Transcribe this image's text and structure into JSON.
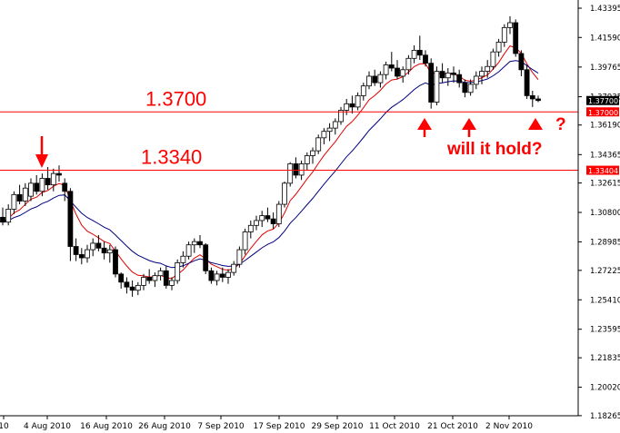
{
  "chart_data": {
    "type": "candlestick",
    "y_ticks": [
      "1.43395",
      "1.41590",
      "1.39765",
      "1.37935",
      "1.36190",
      "1.34365",
      "1.32615",
      "1.30800",
      "1.28985",
      "1.27225",
      "1.25410",
      "1.23595",
      "1.21835",
      "1.20020",
      "1.18265"
    ],
    "x_ticks": [
      "10",
      "4 Aug 2010",
      "16 Aug 2010",
      "26 Aug 2010",
      "7 Sep 2010",
      "17 Sep 2010",
      "29 Sep 2010",
      "11 Oct 2010",
      "21 Oct 2010",
      "2 Nov 2010"
    ],
    "ylim": [
      1.1826,
      1.439
    ],
    "current_price": "1.37700",
    "levels": [
      {
        "value": 1.37,
        "label": "1.3700",
        "tag": "1.37000"
      },
      {
        "value": 1.334,
        "label": "1.3340",
        "tag": "1.33404"
      }
    ],
    "annotations": {
      "question": "will it hold?",
      "mark": "?"
    },
    "candles": [
      [
        1.305,
        1.311,
        1.3,
        1.302
      ],
      [
        1.302,
        1.313,
        1.3,
        1.31
      ],
      [
        1.31,
        1.321,
        1.307,
        1.319
      ],
      [
        1.319,
        1.325,
        1.313,
        1.315
      ],
      [
        1.315,
        1.326,
        1.312,
        1.323
      ],
      [
        1.318,
        1.329,
        1.315,
        1.326
      ],
      [
        1.326,
        1.331,
        1.319,
        1.321
      ],
      [
        1.321,
        1.332,
        1.318,
        1.329
      ],
      [
        1.329,
        1.336,
        1.322,
        1.325
      ],
      [
        1.325,
        1.335,
        1.321,
        1.332
      ],
      [
        1.332,
        1.337,
        1.327,
        1.331
      ],
      [
        1.326,
        1.329,
        1.315,
        1.321
      ],
      [
        1.321,
        1.323,
        1.278,
        1.287
      ],
      [
        1.287,
        1.292,
        1.278,
        1.282
      ],
      [
        1.282,
        1.286,
        1.276,
        1.28
      ],
      [
        1.28,
        1.288,
        1.277,
        1.285
      ],
      [
        1.285,
        1.292,
        1.281,
        1.289
      ],
      [
        1.289,
        1.294,
        1.284,
        1.286
      ],
      [
        1.286,
        1.29,
        1.279,
        1.283
      ],
      [
        1.283,
        1.288,
        1.277,
        1.285
      ],
      [
        1.285,
        1.287,
        1.268,
        1.27
      ],
      [
        1.27,
        1.271,
        1.261,
        1.265
      ],
      [
        1.265,
        1.268,
        1.258,
        1.262
      ],
      [
        1.262,
        1.266,
        1.256,
        1.26
      ],
      [
        1.26,
        1.265,
        1.257,
        1.263
      ],
      [
        1.263,
        1.27,
        1.26,
        1.268
      ],
      [
        1.268,
        1.273,
        1.264,
        1.266
      ],
      [
        1.266,
        1.271,
        1.262,
        1.269
      ],
      [
        1.269,
        1.274,
        1.266,
        1.272
      ],
      [
        1.272,
        1.275,
        1.261,
        1.263
      ],
      [
        1.263,
        1.268,
        1.26,
        1.266
      ],
      [
        1.266,
        1.279,
        1.264,
        1.277
      ],
      [
        1.277,
        1.284,
        1.274,
        1.281
      ],
      [
        1.281,
        1.29,
        1.279,
        1.288
      ],
      [
        1.288,
        1.292,
        1.283,
        1.29
      ],
      [
        1.29,
        1.294,
        1.286,
        1.288
      ],
      [
        1.288,
        1.289,
        1.27,
        1.272
      ],
      [
        1.272,
        1.274,
        1.264,
        1.266
      ],
      [
        1.266,
        1.272,
        1.263,
        1.27
      ],
      [
        1.27,
        1.274,
        1.265,
        1.268
      ],
      [
        1.268,
        1.273,
        1.264,
        1.271
      ],
      [
        1.271,
        1.278,
        1.269,
        1.276
      ],
      [
        1.276,
        1.287,
        1.274,
        1.285
      ],
      [
        1.285,
        1.298,
        1.282,
        1.296
      ],
      [
        1.296,
        1.303,
        1.292,
        1.3
      ],
      [
        1.3,
        1.306,
        1.297,
        1.303
      ],
      [
        1.303,
        1.309,
        1.299,
        1.306
      ],
      [
        1.306,
        1.311,
        1.302,
        1.304
      ],
      [
        1.304,
        1.308,
        1.298,
        1.301
      ],
      [
        1.301,
        1.315,
        1.299,
        1.313
      ],
      [
        1.313,
        1.327,
        1.311,
        1.326
      ],
      [
        1.326,
        1.339,
        1.324,
        1.338
      ],
      [
        1.338,
        1.342,
        1.329,
        1.331
      ],
      [
        1.331,
        1.34,
        1.328,
        1.338
      ],
      [
        1.338,
        1.345,
        1.334,
        1.343
      ],
      [
        1.343,
        1.348,
        1.338,
        1.346
      ],
      [
        1.346,
        1.356,
        1.344,
        1.354
      ],
      [
        1.354,
        1.36,
        1.35,
        1.358
      ],
      [
        1.358,
        1.363,
        1.352,
        1.36
      ],
      [
        1.36,
        1.366,
        1.356,
        1.364
      ],
      [
        1.364,
        1.373,
        1.362,
        1.371
      ],
      [
        1.371,
        1.378,
        1.368,
        1.375
      ],
      [
        1.375,
        1.38,
        1.369,
        1.373
      ],
      [
        1.373,
        1.382,
        1.371,
        1.38
      ],
      [
        1.38,
        1.388,
        1.377,
        1.386
      ],
      [
        1.386,
        1.395,
        1.384,
        1.392
      ],
      [
        1.392,
        1.396,
        1.386,
        1.388
      ],
      [
        1.388,
        1.395,
        1.385,
        1.393
      ],
      [
        1.393,
        1.401,
        1.39,
        1.399
      ],
      [
        1.399,
        1.407,
        1.395,
        1.397
      ],
      [
        1.397,
        1.402,
        1.39,
        1.392
      ],
      [
        1.392,
        1.398,
        1.388,
        1.396
      ],
      [
        1.396,
        1.405,
        1.393,
        1.403
      ],
      [
        1.403,
        1.411,
        1.4,
        1.408
      ],
      [
        1.408,
        1.417,
        1.402,
        1.405
      ],
      [
        1.405,
        1.408,
        1.398,
        1.4
      ],
      [
        1.4,
        1.403,
        1.372,
        1.376
      ],
      [
        1.376,
        1.398,
        1.374,
        1.395
      ],
      [
        1.395,
        1.4,
        1.388,
        1.391
      ],
      [
        1.391,
        1.397,
        1.386,
        1.394
      ],
      [
        1.394,
        1.398,
        1.388,
        1.393
      ],
      [
        1.393,
        1.396,
        1.385,
        1.388
      ],
      [
        1.388,
        1.39,
        1.379,
        1.382
      ],
      [
        1.382,
        1.39,
        1.38,
        1.387
      ],
      [
        1.387,
        1.395,
        1.384,
        1.392
      ],
      [
        1.392,
        1.398,
        1.387,
        1.395
      ],
      [
        1.395,
        1.402,
        1.391,
        1.398
      ],
      [
        1.398,
        1.409,
        1.396,
        1.407
      ],
      [
        1.407,
        1.415,
        1.404,
        1.413
      ],
      [
        1.413,
        1.424,
        1.41,
        1.422
      ],
      [
        1.422,
        1.429,
        1.418,
        1.425
      ],
      [
        1.425,
        1.427,
        1.404,
        1.406
      ],
      [
        1.406,
        1.408,
        1.392,
        1.396
      ],
      [
        1.396,
        1.399,
        1.378,
        1.38
      ],
      [
        1.38,
        1.383,
        1.373,
        1.378
      ],
      [
        1.378,
        1.38,
        1.376,
        1.377
      ]
    ]
  }
}
